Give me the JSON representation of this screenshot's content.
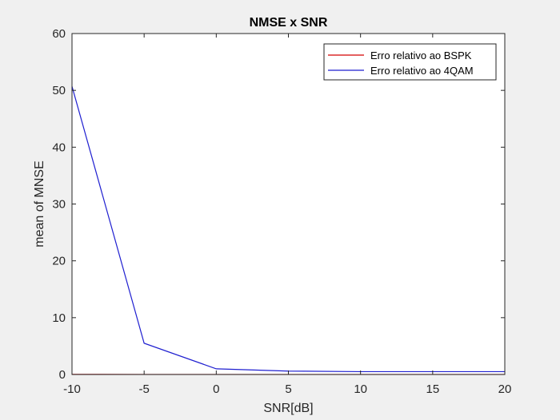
{
  "chart_data": {
    "type": "line",
    "title": "NMSE x SNR",
    "xlabel": "SNR[dB]",
    "ylabel": "mean of MNSE",
    "xlim": [
      -10,
      20
    ],
    "ylim": [
      0,
      60
    ],
    "xticks": [
      -10,
      -5,
      0,
      5,
      10,
      15,
      20
    ],
    "yticks": [
      0,
      10,
      20,
      30,
      40,
      50,
      60
    ],
    "grid": false,
    "legend_location": "top-right",
    "x": [
      -10,
      -5,
      0,
      5,
      10,
      15,
      20
    ],
    "series": [
      {
        "name": "Erro relativo ao BSPK",
        "color": "#d40000",
        "values": [
          0.02,
          0.01,
          0.01,
          0.01,
          0.01,
          0.01,
          0.01
        ]
      },
      {
        "name": "Erro relativo ao 4QAM",
        "color": "#1f1fd0",
        "values": [
          50.7,
          5.5,
          1.0,
          0.6,
          0.5,
          0.5,
          0.5
        ]
      }
    ]
  }
}
